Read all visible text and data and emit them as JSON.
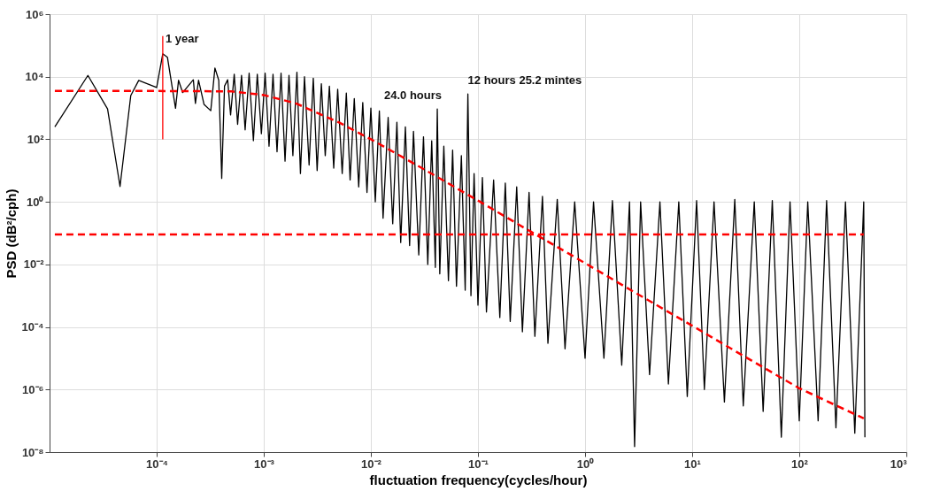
{
  "chart_data": {
    "type": "line",
    "xlabel": "fluctuation frequency(cycles/hour)",
    "ylabel": "PSD (dB²/cph)",
    "log": "xy",
    "grid": true,
    "marker": "none",
    "xlim": [
      1e-05,
      1000
    ],
    "ylim": [
      1e-08,
      1000000
    ],
    "xticks": [
      {
        "value": 0.0001,
        "label": "10⁻⁴"
      },
      {
        "value": 0.001,
        "label": "10⁻³"
      },
      {
        "value": 0.01,
        "label": "10⁻²"
      },
      {
        "value": 0.1,
        "label": "10⁻¹"
      },
      {
        "value": 1,
        "label": "10⁰"
      },
      {
        "value": 10,
        "label": "10¹"
      },
      {
        "value": 100,
        "label": "10²"
      },
      {
        "value": 1000,
        "label": "10³"
      }
    ],
    "yticks": [
      {
        "value": 1e-08,
        "label": "10⁻⁸"
      },
      {
        "value": 1e-06,
        "label": "10⁻⁶"
      },
      {
        "value": 0.0001,
        "label": "10⁻⁴"
      },
      {
        "value": 0.01,
        "label": "10⁻²"
      },
      {
        "value": 1,
        "label": "10⁰"
      },
      {
        "value": 100,
        "label": "10²"
      },
      {
        "value": 10000,
        "label": "10⁴"
      },
      {
        "value": 1000000,
        "label": "10⁶"
      }
    ],
    "series": [
      {
        "color": "#000000",
        "line_style": "solid",
        "x": [
          1.12e-05,
          2.28e-05,
          3.48e-05,
          4.55e-05,
          5.73e-05,
          6.8e-05,
          0.0001,
          0.000114,
          0.000126,
          0.00015,
          0.00016,
          0.000175,
          0.00022,
          0.00023,
          0.000246,
          0.000277,
          0.00032,
          0.00035,
          0.00038,
          0.000405,
          0.00043,
          0.00046,
          0.00049,
          0.00053,
          0.00057,
          0.00062,
          0.00067,
          0.00073,
          0.0008,
          0.00087,
          0.00095,
          0.00103,
          0.00112,
          0.00122,
          0.00133,
          0.00145,
          0.00158,
          0.00172,
          0.00187,
          0.00204,
          0.0022,
          0.0024,
          0.00265,
          0.0029,
          0.00315,
          0.00345,
          0.00375,
          0.0041,
          0.0045,
          0.0049,
          0.0054,
          0.0059,
          0.0064,
          0.007,
          0.0077,
          0.0084,
          0.0092,
          0.01,
          0.011,
          0.012,
          0.013,
          0.0145,
          0.016,
          0.0175,
          0.019,
          0.021,
          0.023,
          0.025,
          0.028,
          0.031,
          0.034,
          0.037,
          0.04,
          0.0417,
          0.044,
          0.048,
          0.053,
          0.058,
          0.063,
          0.07,
          0.076,
          0.0805,
          0.086,
          0.092,
          0.1,
          0.11,
          0.12,
          0.14,
          0.16,
          0.18,
          0.2,
          0.23,
          0.26,
          0.3,
          0.34,
          0.4,
          0.45,
          0.55,
          0.65,
          0.8,
          1.0,
          1.2,
          1.5,
          1.8,
          2.2,
          2.6,
          2.9,
          3.3,
          4,
          5,
          6,
          7.5,
          9,
          11,
          13,
          16,
          20,
          25,
          30,
          38,
          46,
          56,
          68,
          82,
          100,
          120,
          150,
          180,
          220,
          270,
          330,
          400,
          410
        ],
        "values": [
          250,
          11000,
          930,
          3.1,
          2500,
          7600,
          4500,
          54000,
          42000,
          980,
          7700,
          3100,
          8000,
          1400,
          7700,
          1300,
          820,
          19000,
          7700,
          5.6,
          5000,
          8000,
          600,
          12000,
          300,
          11000,
          200,
          13000,
          90,
          12000,
          150,
          13000,
          60,
          12000,
          40,
          13000,
          20,
          11000,
          30,
          14000,
          8,
          10000,
          15,
          9000,
          10,
          6000,
          30,
          5000,
          12,
          4000,
          8,
          3000,
          5,
          2000,
          3,
          1500,
          2,
          1000,
          1.0,
          800,
          0.3,
          500,
          0.2,
          350,
          0.05,
          250,
          0.04,
          180,
          0.02,
          120,
          0.01,
          90,
          0.008,
          930,
          0.005,
          60,
          0.003,
          45,
          0.002,
          30,
          0.0015,
          2800,
          0.001,
          8,
          0.0005,
          6,
          0.0003,
          5,
          0.0002,
          4,
          0.00015,
          3,
          7e-05,
          2,
          5e-05,
          1.5,
          3e-05,
          1.2,
          2e-05,
          1.0,
          1e-05,
          1.0,
          1e-05,
          1.1,
          6e-06,
          1.0,
          1.5e-08,
          1.0,
          3e-06,
          1.0,
          1.5e-06,
          1.0,
          6e-07,
          1.1,
          1e-06,
          1.0,
          4e-07,
          1.2,
          3e-07,
          1.0,
          2e-07,
          1.1,
          3e-08,
          1.0,
          1e-07,
          1.0,
          1e-07,
          1.1,
          6e-08,
          1.0,
          4e-08,
          1.0,
          3e-08
        ]
      },
      {
        "color": "#ff0000",
        "line_style": "dashed",
        "x": [
          1.12e-05,
          0.0001,
          0.0005,
          0.001,
          0.002,
          0.005,
          0.01,
          0.03,
          0.1,
          0.3,
          1,
          3,
          10,
          30,
          100,
          400
        ],
        "values": [
          3500,
          3500,
          3400,
          2600,
          1400,
          350,
          100,
          12,
          1.1,
          0.12,
          0.011,
          0.0012,
          0.00011,
          1.2e-05,
          1.1e-06,
          1.2e-07
        ]
      },
      {
        "color": "#ff0000",
        "line_style": "dashed",
        "x": [
          1.12e-05,
          400
        ],
        "values": [
          0.09,
          0.09
        ]
      },
      {
        "color": "#ff0000",
        "line_style": "solid",
        "x": [
          0.000114,
          0.000114
        ],
        "values": [
          100,
          200000
        ]
      }
    ],
    "annotations": [
      {
        "text": "1 year",
        "x": 0.000114,
        "y": 200000
      },
      {
        "text": "24.0 hours",
        "x": 0.0417,
        "y": 930
      },
      {
        "text": "12 hours 25.2 mintes",
        "x": 0.0805,
        "y": 2800
      }
    ]
  }
}
